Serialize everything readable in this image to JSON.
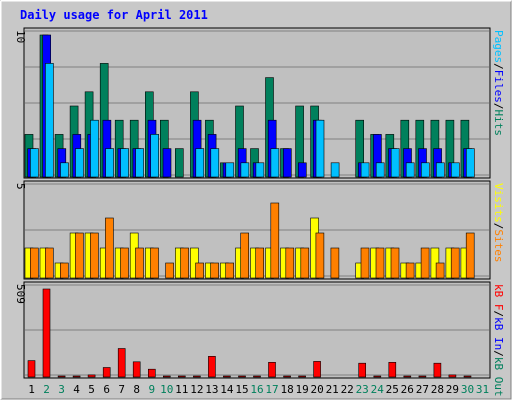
{
  "title": "Daily usage for April 2011",
  "colors": {
    "title": "#0000ff",
    "panel": "#c0c0c0",
    "grid": "#808080",
    "hits": "#00805c",
    "files": "#0000ff",
    "pages": "#00c0ff",
    "visits": "#ffff00",
    "sites": "#ff8000",
    "kbin": "#00805c",
    "kbout": "#0000ff",
    "kbf": "#ff0000",
    "weekend_day": "#00805c",
    "weekday": "#000000"
  },
  "chart_data": {
    "type": "bar",
    "title": "Daily usage for April 2011",
    "categories": [
      "1",
      "2",
      "3",
      "4",
      "5",
      "6",
      "7",
      "8",
      "9",
      "10",
      "11",
      "12",
      "13",
      "14",
      "15",
      "16",
      "17",
      "18",
      "19",
      "20",
      "21",
      "22",
      "23",
      "24",
      "25",
      "26",
      "27",
      "28",
      "29",
      "30",
      "31"
    ],
    "weekend_days": [
      "2",
      "3",
      "9",
      "10",
      "16",
      "17",
      "23",
      "24",
      "30",
      "31"
    ],
    "panels": [
      {
        "name": "hits-files-pages",
        "ymax_label": "10",
        "ymax": 10,
        "right_labels": [
          {
            "text": "Pages",
            "color": "#00c0ff"
          },
          {
            "text": "/",
            "color": "#000000"
          },
          {
            "text": "Files",
            "color": "#0000ff"
          },
          {
            "text": "/",
            "color": "#000000"
          },
          {
            "text": "Hits",
            "color": "#00805c"
          }
        ],
        "series": [
          {
            "name": "Hits",
            "color": "#00805c",
            "values": [
              3,
              10,
              3,
              5,
              6,
              8,
              4,
              4,
              6,
              4,
              2,
              6,
              4,
              1,
              5,
              2,
              7,
              2,
              5,
              5,
              0,
              0,
              4,
              3,
              3,
              4,
              4,
              4,
              4,
              4,
              0
            ]
          },
          {
            "name": "Files",
            "color": "#0000ff",
            "values": [
              2,
              10,
              2,
              3,
              3,
              4,
              2,
              2,
              4,
              2,
              0,
              4,
              3,
              1,
              2,
              1,
              4,
              2,
              1,
              4,
              0,
              0,
              1,
              3,
              2,
              2,
              2,
              2,
              1,
              2,
              0
            ]
          },
          {
            "name": "Pages",
            "color": "#00c0ff",
            "values": [
              2,
              8,
              1,
              2,
              4,
              2,
              2,
              2,
              3,
              0,
              0,
              2,
              2,
              1,
              1,
              1,
              2,
              0,
              0,
              4,
              1,
              0,
              1,
              1,
              2,
              1,
              1,
              1,
              1,
              2,
              0
            ]
          }
        ]
      },
      {
        "name": "visits-sites",
        "ymax_label": "5",
        "ymax": 6,
        "right_labels": [
          {
            "text": "Visits",
            "color": "#ffff00"
          },
          {
            "text": "/",
            "color": "#000000"
          },
          {
            "text": "Sites",
            "color": "#ff8000"
          }
        ],
        "series": [
          {
            "name": "Visits",
            "color": "#ffff00",
            "values": [
              2,
              2,
              1,
              3,
              3,
              2,
              2,
              3,
              2,
              0,
              2,
              2,
              1,
              1,
              2,
              2,
              2,
              2,
              2,
              4,
              0,
              0,
              1,
              2,
              2,
              1,
              1,
              2,
              2,
              2,
              0
            ]
          },
          {
            "name": "Sites",
            "color": "#ff8000",
            "values": [
              2,
              2,
              1,
              3,
              3,
              4,
              2,
              2,
              2,
              1,
              2,
              1,
              1,
              1,
              3,
              2,
              5,
              2,
              2,
              3,
              2,
              0,
              2,
              2,
              2,
              1,
              2,
              1,
              2,
              3,
              0
            ]
          }
        ]
      },
      {
        "name": "kbytes",
        "ymax_label": "509",
        "ymax": 509,
        "right_labels": [
          {
            "text": "kB F",
            "color": "#ff0000"
          },
          {
            "text": "/",
            "color": "#000000"
          },
          {
            "text": "kB In",
            "color": "#0000ff"
          },
          {
            "text": "/",
            "color": "#000000"
          },
          {
            "text": "kB Out",
            "color": "#00805c"
          }
        ],
        "series": [
          {
            "name": "kB F",
            "color": "#ff0000",
            "values": [
              95,
              509,
              6,
              6,
              12,
              55,
              165,
              88,
              45,
              6,
              6,
              6,
              120,
              6,
              6,
              6,
              85,
              6,
              6,
              90,
              0,
              0,
              80,
              6,
              85,
              6,
              6,
              80,
              12,
              6,
              0
            ]
          }
        ]
      }
    ]
  }
}
